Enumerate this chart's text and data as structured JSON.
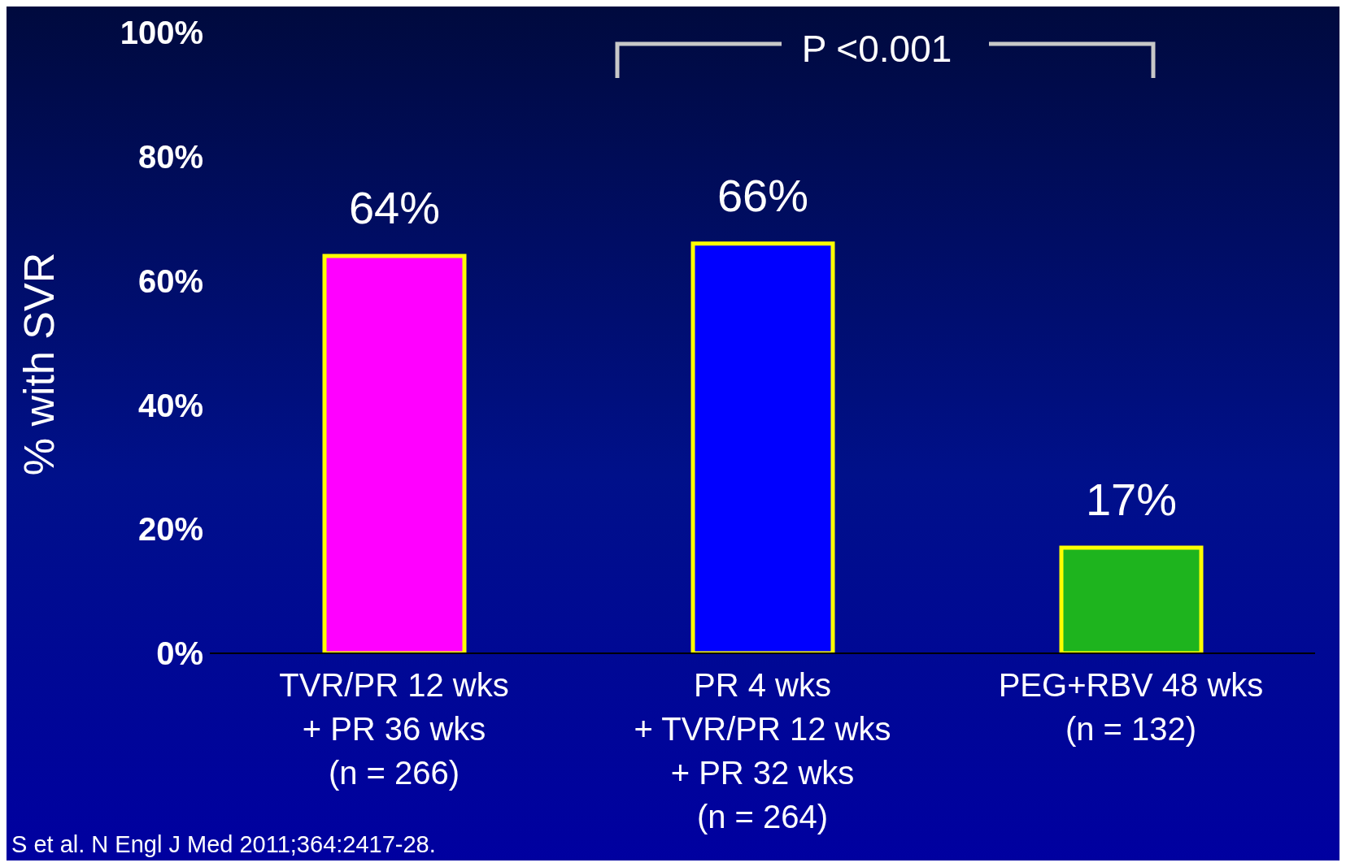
{
  "chart_data": {
    "type": "bar",
    "ylabel": "% with SVR",
    "categories": [
      "TVR/PR 12 wks\n+ PR  36 wks\n(n = 266)",
      "PR 4 wks\n+ TVR/PR 12 wks\n+ PR 32 wks\n(n = 264)",
      "PEG+RBV 48 wks\n(n = 132)"
    ],
    "values": [
      64,
      66,
      17
    ],
    "colors": [
      "#ff00ff",
      "#0000ff",
      "#1eb41e"
    ],
    "value_labels": [
      "64%",
      "66%",
      "17%"
    ],
    "ylim": [
      0,
      100
    ],
    "yticks": [
      {
        "value": 0,
        "label": "0%"
      },
      {
        "value": 20,
        "label": "20%"
      },
      {
        "value": 40,
        "label": "40%"
      },
      {
        "value": 60,
        "label": "60%"
      },
      {
        "value": 80,
        "label": "80%"
      },
      {
        "value": 100,
        "label": "100%"
      }
    ],
    "grid": false,
    "legend": false,
    "annotations": [
      "P <0.001",
      "S et al. N Engl J Med 2011;364:2417-28."
    ]
  }
}
